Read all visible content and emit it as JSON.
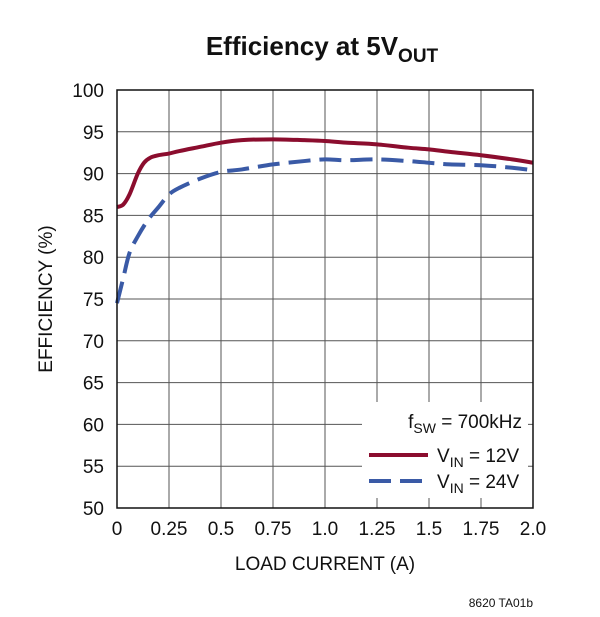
{
  "chart_data": {
    "type": "line",
    "title": "Efficiency at 5V",
    "title_subscript": "OUT",
    "xlabel": "LOAD CURRENT (A)",
    "ylabel": "EFFICIENCY (%)",
    "xlim": [
      0,
      2.0
    ],
    "ylim": [
      50,
      100
    ],
    "x_ticks": [
      "0",
      "0.25",
      "0.5",
      "0.75",
      "1.0",
      "1.25",
      "1.5",
      "1.75",
      "2.0"
    ],
    "x_tick_values": [
      0,
      0.25,
      0.5,
      0.75,
      1.0,
      1.25,
      1.5,
      1.75,
      2.0
    ],
    "y_ticks": [
      "50",
      "55",
      "60",
      "65",
      "70",
      "75",
      "80",
      "85",
      "90",
      "95",
      "100"
    ],
    "y_tick_values": [
      50,
      55,
      60,
      65,
      70,
      75,
      80,
      85,
      90,
      95,
      100
    ],
    "grid": true,
    "legend_position": "bottom-right",
    "legend_note": {
      "prefix": "f",
      "subscript": "SW",
      "suffix": " = 700kHz"
    },
    "series": [
      {
        "name": "V_IN = 12V",
        "label_prefix": "V",
        "label_subscript": "IN",
        "label_suffix": " = 12V",
        "color": "#8b0d2e",
        "dash": "solid",
        "x": [
          0,
          0.03,
          0.06,
          0.1,
          0.13,
          0.16,
          0.2,
          0.25,
          0.3,
          0.4,
          0.5,
          0.6,
          0.75,
          0.9,
          1.0,
          1.1,
          1.25,
          1.4,
          1.5,
          1.6,
          1.75,
          1.9,
          2.0
        ],
        "y": [
          86.0,
          86.3,
          87.5,
          90.0,
          91.3,
          91.9,
          92.2,
          92.4,
          92.7,
          93.2,
          93.7,
          94.0,
          94.1,
          94.0,
          93.9,
          93.7,
          93.5,
          93.1,
          92.9,
          92.6,
          92.2,
          91.7,
          91.3
        ]
      },
      {
        "name": "V_IN = 24V",
        "label_prefix": "V",
        "label_subscript": "IN",
        "label_suffix": " = 24V",
        "color": "#3a5aa6",
        "dash": "dashed",
        "x": [
          0,
          0.03,
          0.06,
          0.1,
          0.15,
          0.2,
          0.25,
          0.3,
          0.4,
          0.5,
          0.6,
          0.75,
          0.9,
          1.0,
          1.1,
          1.25,
          1.4,
          1.5,
          1.6,
          1.75,
          1.9,
          2.0
        ],
        "y": [
          74.5,
          77.5,
          80.5,
          82.5,
          84.5,
          86.0,
          87.5,
          88.3,
          89.4,
          90.2,
          90.5,
          91.1,
          91.5,
          91.7,
          91.6,
          91.7,
          91.5,
          91.3,
          91.1,
          91.0,
          90.7,
          90.4
        ]
      }
    ]
  },
  "footnote": "8620 TA01b"
}
